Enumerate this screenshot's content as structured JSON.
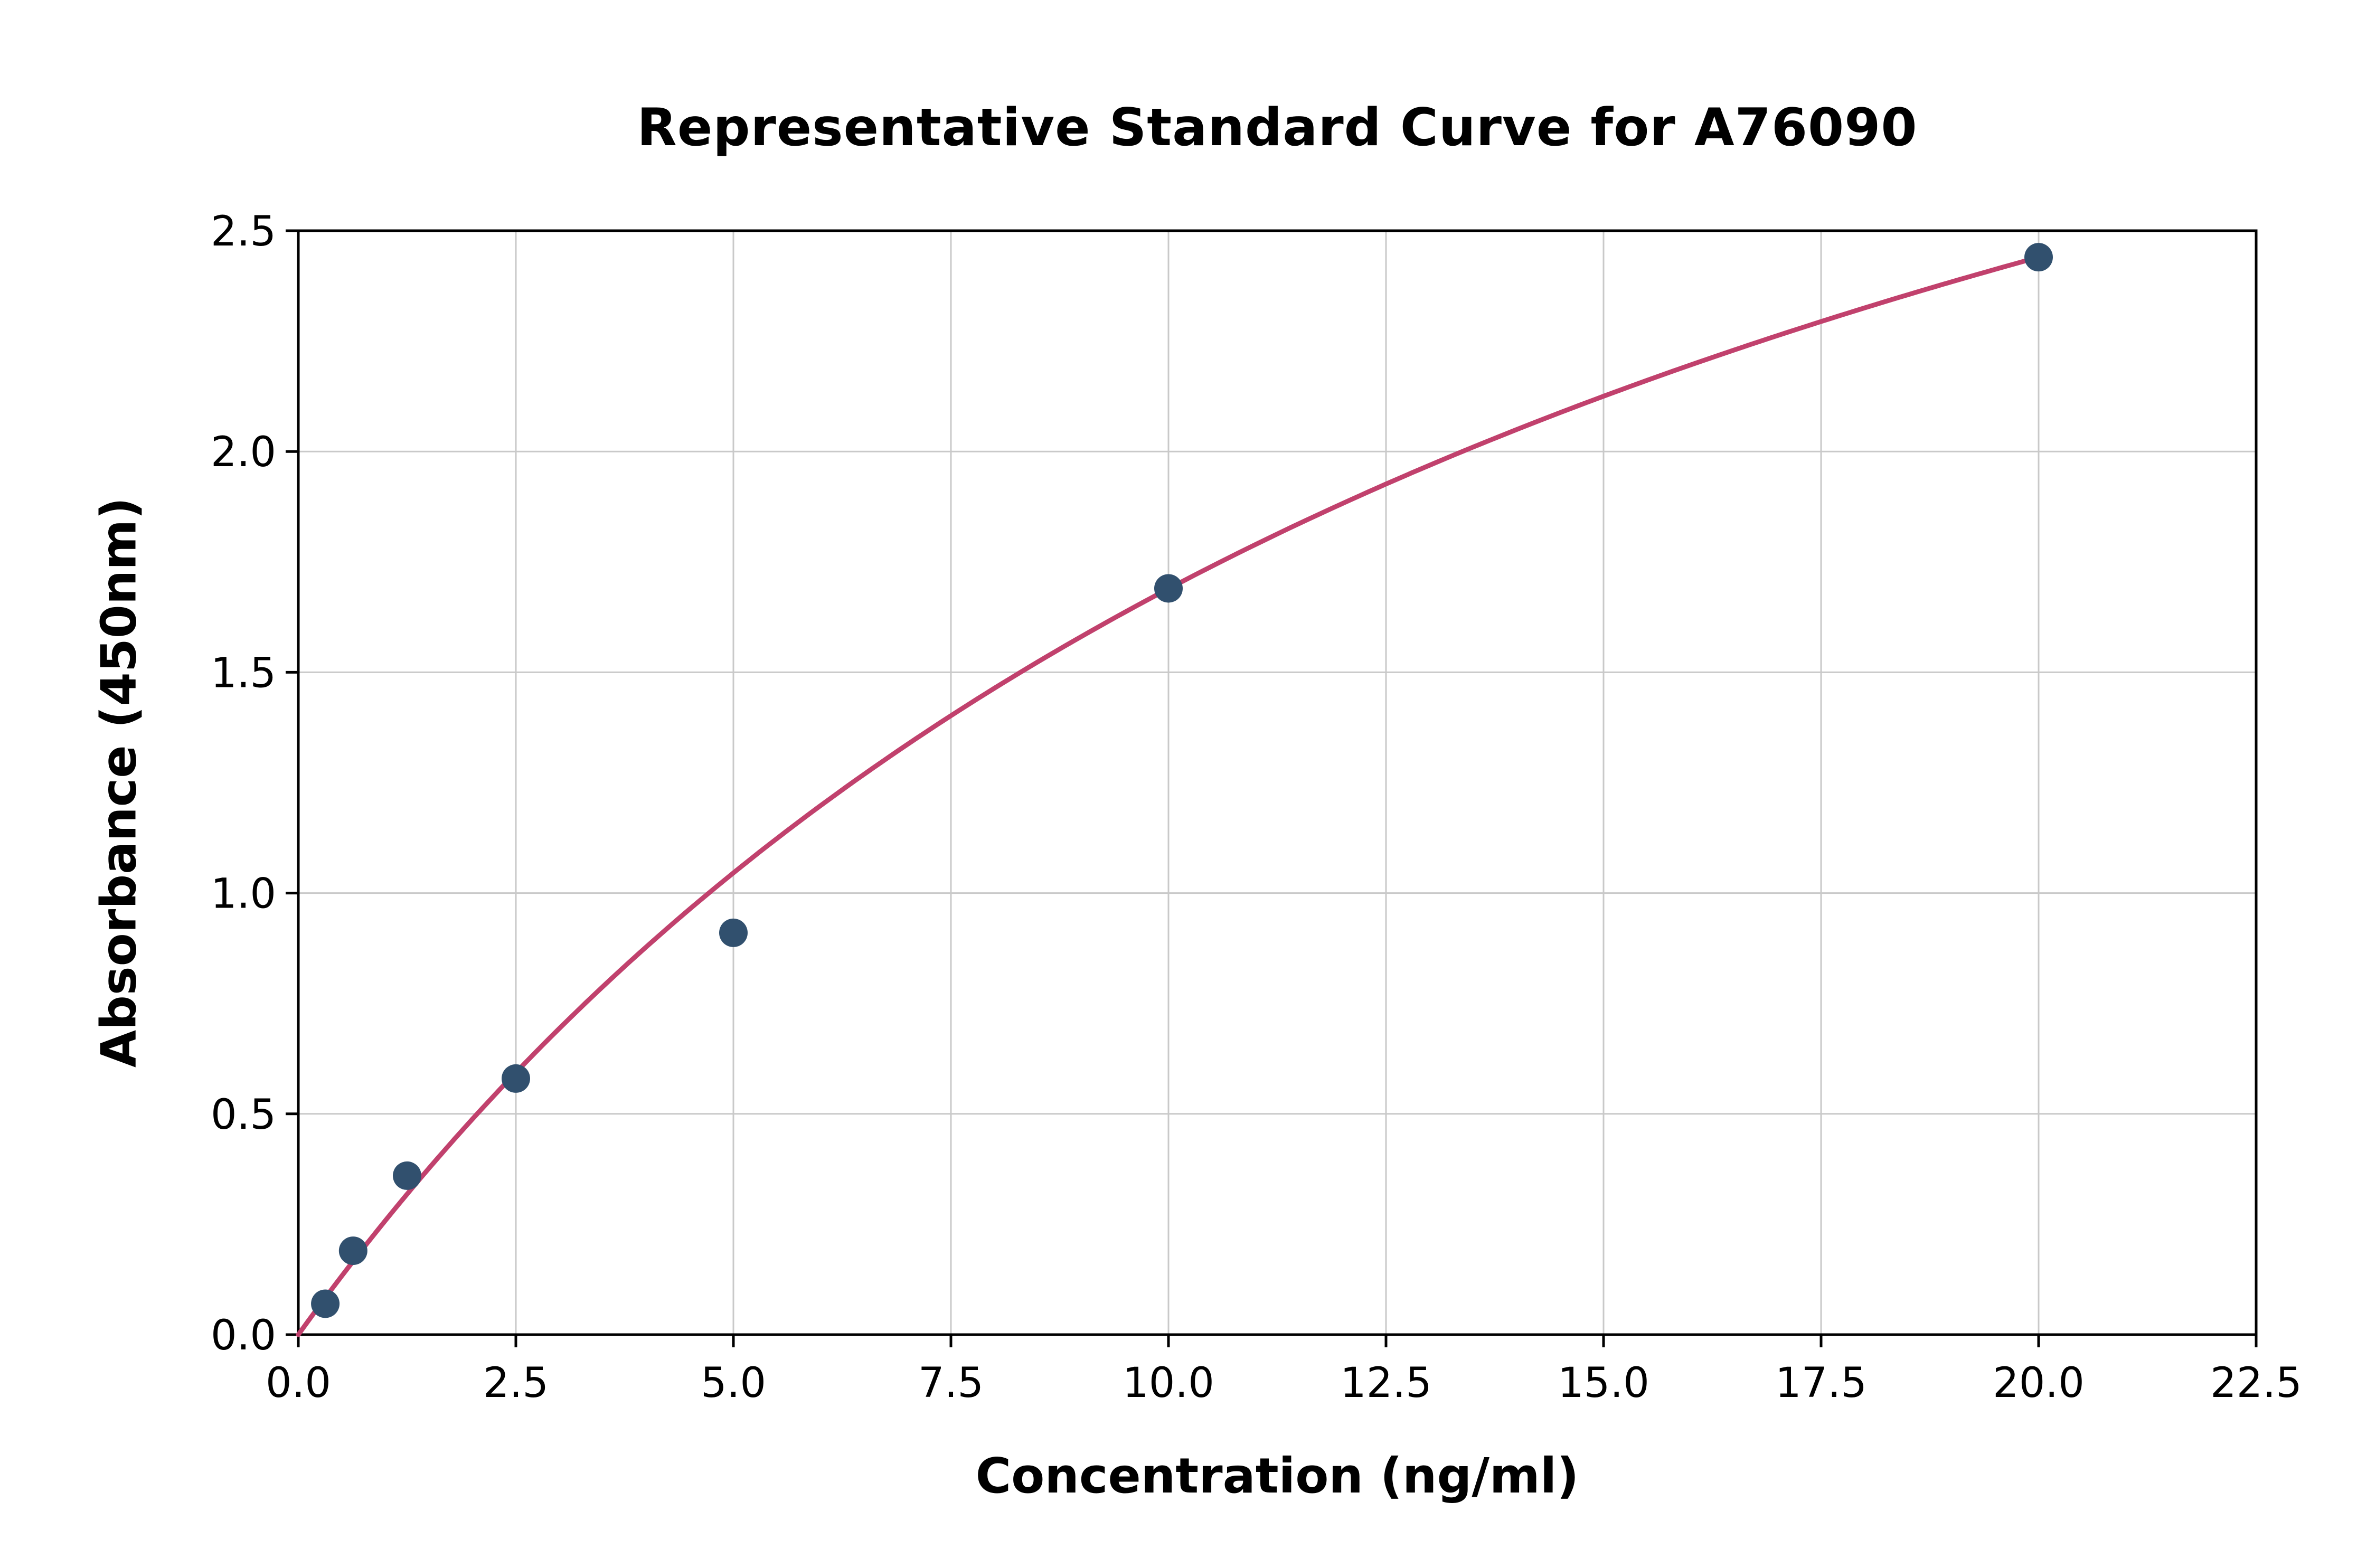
{
  "chart_data": {
    "type": "scatter",
    "title": "Representative Standard Curve for A76090",
    "xlabel": "Concentration (ng/ml)",
    "ylabel": "Absorbance (450nm)",
    "xlim": [
      0,
      22.5
    ],
    "ylim": [
      0,
      2.5
    ],
    "grid": true,
    "legend": "none",
    "x_ticks": [
      0,
      2.5,
      5,
      7.5,
      10,
      12.5,
      15,
      17.5,
      20,
      22.5
    ],
    "x_tick_labels": [
      "0.0",
      "2.5",
      "5.0",
      "7.5",
      "10.0",
      "12.5",
      "15.0",
      "17.5",
      "20.0",
      "22.5"
    ],
    "y_ticks": [
      0,
      0.5,
      1,
      1.5,
      2,
      2.5
    ],
    "y_tick_labels": [
      "0.0",
      "0.5",
      "1.0",
      "1.5",
      "2.0",
      "2.5"
    ],
    "points": {
      "x": [
        0.31,
        0.63,
        1.25,
        2.5,
        5.0,
        10.0,
        20.0
      ],
      "y": [
        0.07,
        0.19,
        0.36,
        0.58,
        0.91,
        1.69,
        2.44
      ]
    },
    "fit_curve": {
      "model": "saturation y = a*x/(b+x)",
      "a": 4.392,
      "b": 16,
      "x_range": [
        0,
        20
      ]
    },
    "colors": {
      "point_color": "#31506e",
      "curve_color": "#c1416d",
      "grid_color": "#c9c9c9",
      "axis_color": "#000000",
      "background": "#ffffff"
    }
  }
}
